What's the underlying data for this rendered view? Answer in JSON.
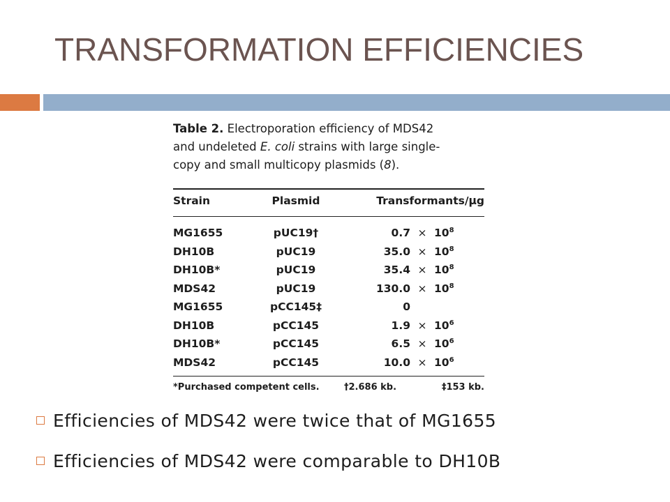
{
  "slide": {
    "title": "TRANSFORMATION EFFICIENCIES"
  },
  "table": {
    "caption_label": "Table 2.",
    "caption_line1": " Electroporation efficiency of MDS42",
    "caption_line2_pre": "and undeleted ",
    "caption_line2_species": "E. coli",
    "caption_line2_post": " strains with large single-",
    "caption_line3_pre": "copy and small multicopy plasmids (",
    "caption_line3_ref": "8",
    "caption_line3_post": ").",
    "headers": [
      "Strain",
      "Plasmid",
      "Transformants/μg"
    ],
    "rows": [
      {
        "strain": "MG1655",
        "plasmid": "pUC19†",
        "mantissa": "0.7",
        "times": "×",
        "base": "10",
        "exp": "8"
      },
      {
        "strain": "DH10B",
        "plasmid": "pUC19",
        "mantissa": "35.0",
        "times": "×",
        "base": "10",
        "exp": "8"
      },
      {
        "strain": "DH10B*",
        "plasmid": "pUC19",
        "mantissa": "35.4",
        "times": "×",
        "base": "10",
        "exp": "8"
      },
      {
        "strain": "MDS42",
        "plasmid": "pUC19",
        "mantissa": "130.0",
        "times": "×",
        "base": "10",
        "exp": "8"
      },
      {
        "strain": "MG1655",
        "plasmid": "pCC145‡",
        "mantissa": "0",
        "times": "",
        "base": "",
        "exp": ""
      },
      {
        "strain": "DH10B",
        "plasmid": "pCC145",
        "mantissa": "1.9",
        "times": "×",
        "base": "10",
        "exp": "6"
      },
      {
        "strain": "DH10B*",
        "plasmid": "pCC145",
        "mantissa": "6.5",
        "times": "×",
        "base": "10",
        "exp": "6"
      },
      {
        "strain": "MDS42",
        "plasmid": "pCC145",
        "mantissa": "10.0",
        "times": "×",
        "base": "10",
        "exp": "6"
      }
    ],
    "footnotes": [
      "*Purchased competent cells.",
      "†2.686 kb.",
      "‡153 kb."
    ]
  },
  "bullets": [
    "Efficiencies of MDS42 were twice that of MG1655",
    "Efficiencies of MDS42 were comparable to DH10B"
  ],
  "colors": {
    "title": "#6b5450",
    "accent_orange": "#dc7a42",
    "accent_blue": "#93aecb"
  }
}
